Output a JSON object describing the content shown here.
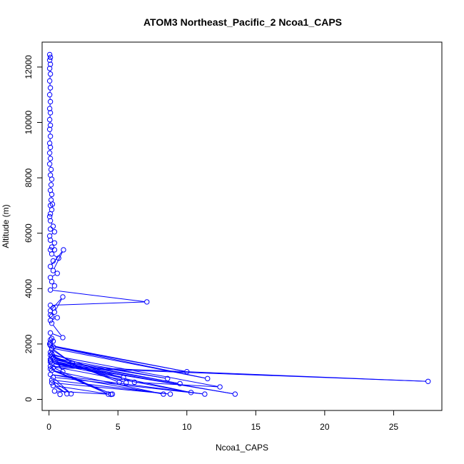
{
  "chart_data": {
    "type": "line",
    "title": "ATOM3 Northeast_Pacific_2 Ncoa1_CAPS",
    "xlabel": "Ncoa1_CAPS",
    "ylabel": "Altitude (m)",
    "xlim": [
      -0.5,
      28.5
    ],
    "ylim": [
      -400,
      12900
    ],
    "xticks": [
      0,
      5,
      10,
      15,
      20,
      25
    ],
    "yticks": [
      0,
      2000,
      4000,
      6000,
      8000,
      10000,
      12000
    ],
    "grid": false,
    "line_color": "#0000ff",
    "marker": "open-circle",
    "series": [
      {
        "x": [
          0.05,
          0.1,
          0.05,
          0.1,
          0.05,
          0.1,
          0.05,
          0.1,
          0.05,
          0.1,
          0.05,
          0.1,
          0.05,
          0.1,
          0.05,
          0.1,
          0.05,
          0.1,
          0.05,
          0.1,
          0.05,
          0.15,
          0.1,
          0.2,
          0.15,
          0.1,
          0.2,
          0.15,
          0.25,
          0.1,
          0.2,
          0.1,
          0.05,
          0.1,
          0.3,
          0.1,
          0.4,
          0.05,
          0.1,
          0.4,
          0.2,
          0.1,
          0.4,
          0.2,
          0.7,
          0.3,
          0.1,
          1.05,
          0.3,
          0.6,
          0.1,
          0.2,
          0.4,
          0.1,
          7.1,
          0.1,
          0.3,
          0.1,
          1.0,
          0.4,
          0.1,
          0.2,
          0.6,
          0.1,
          0.2,
          1.0,
          0.1,
          0.2,
          0.1,
          0.3,
          0.1,
          0.05,
          0.1,
          10.0,
          0.3,
          11.5,
          0.2,
          1.7,
          0.2,
          1.0,
          0.1,
          0.2,
          6.2,
          12.4,
          0.1,
          5.1,
          0.2,
          5.6,
          0.3,
          8.6,
          0.1,
          9.5,
          0.1,
          5.4,
          0.1,
          13.5,
          0.2,
          10.3,
          0.1,
          27.5,
          0.3,
          4.3,
          0.1,
          4.6,
          0.2,
          8.3,
          0.1,
          11.3,
          0.3,
          1.6,
          0.2,
          8.8,
          0.2,
          1.3,
          0.3,
          4.5,
          0.4,
          0.8
        ],
        "y": [
          12450,
          12350,
          12250,
          12100,
          11950,
          11750,
          11500,
          11250,
          11000,
          10750,
          10500,
          10350,
          10100,
          9900,
          9750,
          9500,
          9250,
          9100,
          8900,
          8700,
          8500,
          8300,
          8100,
          7950,
          7750,
          7550,
          7400,
          7200,
          7050,
          7000,
          6850,
          6700,
          6600,
          6450,
          6250,
          6150,
          6050,
          5900,
          5750,
          5650,
          5500,
          5400,
          5400,
          5250,
          5100,
          5000,
          4800,
          5400,
          4650,
          4550,
          4400,
          4250,
          4100,
          3950,
          3520,
          3400,
          3300,
          3200,
          3700,
          3150,
          3050,
          3000,
          2950,
          2850,
          2750,
          2230,
          2400,
          2200,
          2150,
          2100,
          2050,
          2000,
          1950,
          1000,
          1900,
          750,
          1850,
          1300,
          1800,
          1000,
          1700,
          1650,
          620,
          450,
          1600,
          620,
          1550,
          600,
          1500,
          750,
          1450,
          570,
          1400,
          790,
          1350,
          190,
          1300,
          250,
          1200,
          650,
          1150,
          190,
          1100,
          190,
          1050,
          190,
          900,
          190,
          800,
          200,
          700,
          190,
          600,
          200,
          500,
          180,
          300,
          180
        ]
      }
    ]
  }
}
